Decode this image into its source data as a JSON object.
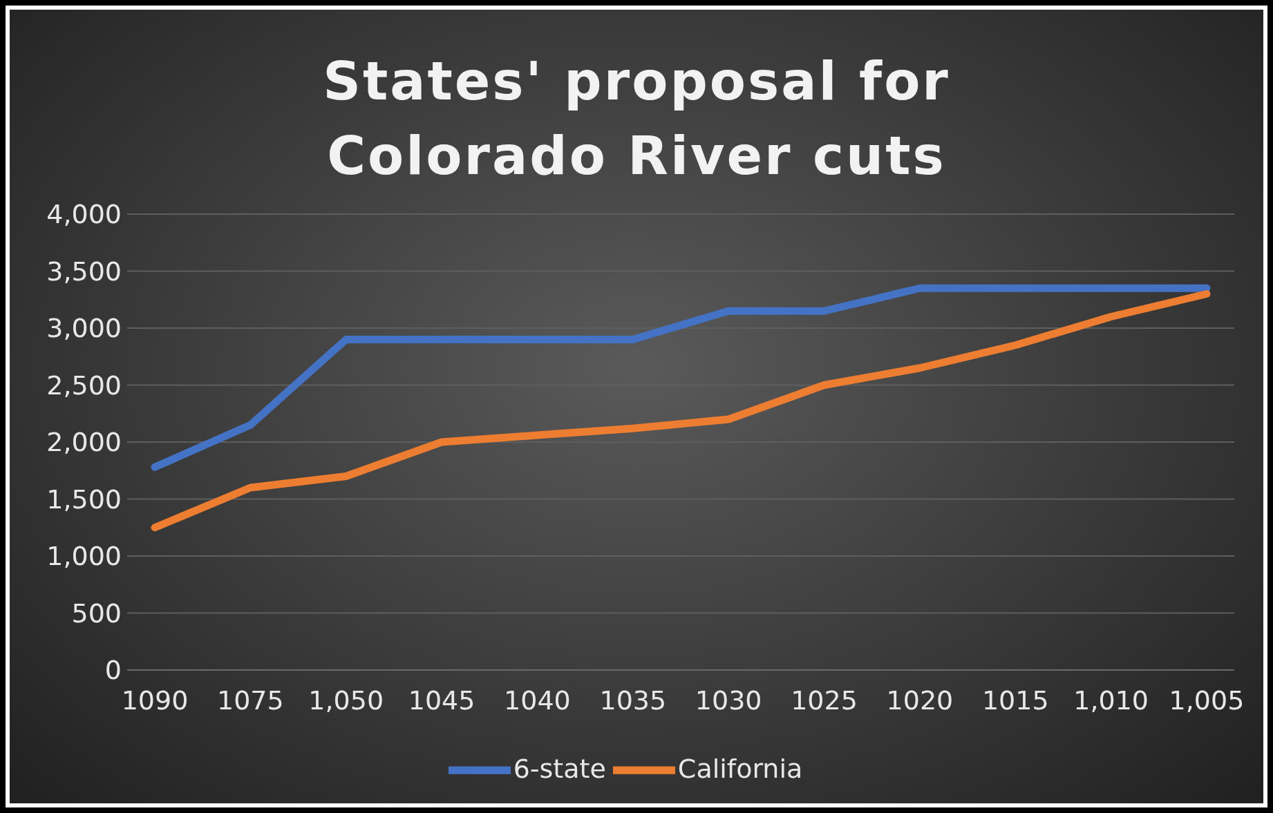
{
  "chart_data": {
    "type": "line",
    "title": "States' proposal for Colorado River cuts",
    "categories": [
      "1090",
      "1075",
      "1,050",
      "1045",
      "1040",
      "1035",
      "1030",
      "1025",
      "1020",
      "1015",
      "1,010",
      "1,005"
    ],
    "series": [
      {
        "name": "6-state",
        "color": "#4472c4",
        "values": [
          1780,
          2150,
          2900,
          2900,
          2900,
          2900,
          3150,
          3150,
          3350,
          3350,
          3350,
          3350
        ]
      },
      {
        "name": "California",
        "color": "#ed7d31",
        "values": [
          1250,
          1600,
          1700,
          2000,
          2060,
          2120,
          2200,
          2500,
          2650,
          2850,
          3100,
          3300
        ]
      }
    ],
    "ylim": [
      0,
      4000
    ],
    "yticks": [
      {
        "value": 0,
        "label": "0"
      },
      {
        "value": 500,
        "label": "500"
      },
      {
        "value": 1000,
        "label": "1,000"
      },
      {
        "value": 1500,
        "label": "1,500"
      },
      {
        "value": 2000,
        "label": "2,000"
      },
      {
        "value": 2500,
        "label": "2,500"
      },
      {
        "value": 3000,
        "label": "3,000"
      },
      {
        "value": 3500,
        "label": "3,500"
      },
      {
        "value": 4000,
        "label": "4,000"
      }
    ],
    "grid": "y",
    "legend": "bottom",
    "marker": "none",
    "line_style": "solid"
  }
}
